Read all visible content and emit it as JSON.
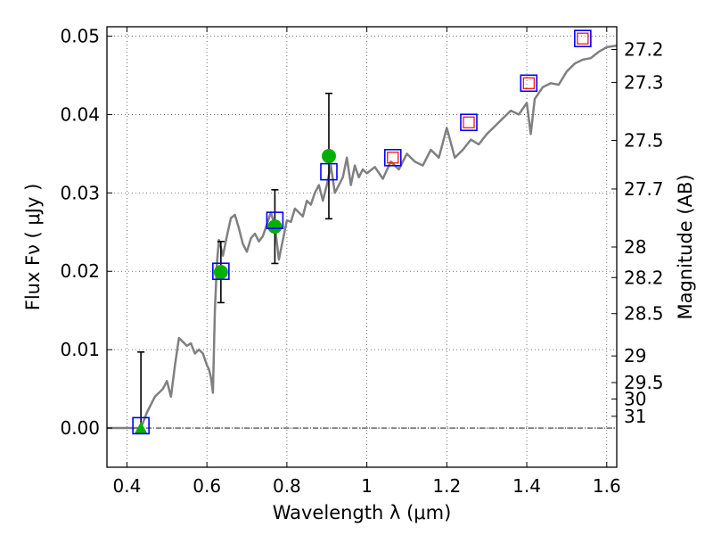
{
  "chart_data": {
    "type": "line",
    "xlabel": "Wavelength  λ (μm)",
    "ylabel": "Flux  Fν  ( μJy )",
    "y2label": "Magnitude (AB)",
    "xlim": [
      0.35,
      1.625
    ],
    "ylim": [
      -0.005,
      0.0512
    ],
    "grid": true,
    "x_ticks": [
      0.4,
      0.6,
      0.8,
      1.0,
      1.2,
      1.4,
      1.6
    ],
    "x_tick_labels": [
      "0.4",
      "0.6",
      "0.8",
      "1",
      "1.2",
      "1.4",
      "1.6"
    ],
    "y_ticks": [
      0.0,
      0.01,
      0.02,
      0.03,
      0.04,
      0.05
    ],
    "y_tick_labels": [
      "0.00",
      "0.01",
      "0.02",
      "0.03",
      "0.04",
      "0.05"
    ],
    "y2_ticks": [
      {
        "label": "27.2",
        "flux": 0.0483
      },
      {
        "label": "27.3",
        "flux": 0.0441
      },
      {
        "label": "27.5",
        "flux": 0.0367
      },
      {
        "label": "27.7",
        "flux": 0.0305
      },
      {
        "label": "28",
        "flux": 0.0231
      },
      {
        "label": "28.2",
        "flux": 0.0192
      },
      {
        "label": "28.5",
        "flux": 0.0146
      },
      {
        "label": "29",
        "flux": 0.0092
      },
      {
        "label": "29.5",
        "flux": 0.0058
      },
      {
        "label": "30",
        "flux": 0.0037
      },
      {
        "label": "31",
        "flux": 0.0015
      }
    ],
    "colors": {
      "model": "#808080",
      "model_photometry": "#0000ff",
      "observed": "#00b000",
      "upper_limit_marker": "#ff0000",
      "error_bar": "#000000",
      "zero_line": "#000000",
      "grid": "#555555"
    },
    "series": [
      {
        "kind": "model_spectrum",
        "x": [
          0.35,
          0.43,
          0.435,
          0.45,
          0.47,
          0.49,
          0.5,
          0.51,
          0.52,
          0.53,
          0.54,
          0.55,
          0.56,
          0.57,
          0.58,
          0.59,
          0.6,
          0.605,
          0.61,
          0.615,
          0.62,
          0.625,
          0.63,
          0.64,
          0.65,
          0.66,
          0.67,
          0.68,
          0.69,
          0.7,
          0.71,
          0.72,
          0.73,
          0.74,
          0.75,
          0.76,
          0.77,
          0.78,
          0.79,
          0.8,
          0.81,
          0.82,
          0.83,
          0.84,
          0.85,
          0.86,
          0.87,
          0.88,
          0.89,
          0.9,
          0.91,
          0.92,
          0.93,
          0.94,
          0.95,
          0.96,
          0.97,
          0.98,
          0.99,
          1.0,
          1.02,
          1.04,
          1.06,
          1.08,
          1.1,
          1.12,
          1.14,
          1.16,
          1.18,
          1.2,
          1.22,
          1.24,
          1.26,
          1.28,
          1.3,
          1.32,
          1.34,
          1.36,
          1.38,
          1.4,
          1.41,
          1.42,
          1.44,
          1.46,
          1.48,
          1.5,
          1.52,
          1.54,
          1.56,
          1.58,
          1.6,
          1.625
        ],
        "y": [
          0.0,
          0.0,
          0.0,
          0.002,
          0.004,
          0.005,
          0.006,
          0.004,
          0.008,
          0.0115,
          0.011,
          0.0105,
          0.0108,
          0.0095,
          0.01,
          0.0095,
          0.008,
          0.0075,
          0.0065,
          0.0045,
          0.015,
          0.021,
          0.024,
          0.022,
          0.0245,
          0.0268,
          0.0272,
          0.0255,
          0.0235,
          0.0225,
          0.0242,
          0.0248,
          0.0238,
          0.0245,
          0.026,
          0.0275,
          0.0258,
          0.0215,
          0.024,
          0.0265,
          0.0263,
          0.028,
          0.0275,
          0.027,
          0.029,
          0.0285,
          0.03,
          0.031,
          0.029,
          0.031,
          0.0335,
          0.03,
          0.031,
          0.032,
          0.0345,
          0.031,
          0.0335,
          0.032,
          0.033,
          0.0325,
          0.0333,
          0.0318,
          0.034,
          0.033,
          0.035,
          0.034,
          0.0335,
          0.0355,
          0.0345,
          0.0383,
          0.0345,
          0.0355,
          0.0368,
          0.0362,
          0.0375,
          0.0385,
          0.0395,
          0.0405,
          0.04,
          0.0415,
          0.0375,
          0.042,
          0.0435,
          0.044,
          0.0438,
          0.0455,
          0.0465,
          0.047,
          0.0472,
          0.048,
          0.0486,
          0.0488
        ]
      },
      {
        "kind": "model_photometry",
        "x": [
          0.435,
          0.635,
          0.77,
          0.905,
          1.065,
          1.255,
          1.405,
          1.54
        ],
        "y": [
          0.0003,
          0.02,
          0.0265,
          0.0327,
          0.0345,
          0.039,
          0.044,
          0.0497
        ]
      },
      {
        "kind": "observed",
        "x": [
          0.435,
          0.635,
          0.77,
          0.905
        ],
        "y": [
          0.0,
          0.0199,
          0.0257,
          0.0347
        ],
        "yerr_low": [
          0.0,
          0.0039,
          0.0047,
          0.008
        ],
        "yerr_high": [
          0.0097,
          0.0039,
          0.0047,
          0.008
        ]
      },
      {
        "kind": "upper_limit",
        "x": [
          1.065,
          1.255,
          1.405,
          1.54
        ],
        "y": [
          0.0345,
          0.039,
          0.044,
          0.0497
        ]
      }
    ]
  }
}
